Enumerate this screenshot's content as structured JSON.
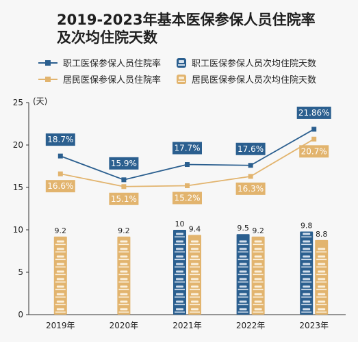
{
  "chart_data": {
    "type": "bar-line",
    "title": "2019-2023年基本医保参保人员住院率",
    "title_line2": "及次均住院天数",
    "y_unit": "(天)",
    "categories": [
      "2019年",
      "2020年",
      "2021年",
      "2022年",
      "2023年"
    ],
    "ylim": [
      0,
      25
    ],
    "yticks": [
      0,
      5,
      10,
      15,
      20,
      25
    ],
    "grid": false,
    "legend_placement": "top",
    "colors": {
      "employee": "#2b5f8f",
      "resident": "#e2b46e",
      "axis": "#333333"
    },
    "series": [
      {
        "name": "职工医保参保人员住院率",
        "type": "line",
        "color_key": "employee",
        "values": [
          18.7,
          15.9,
          17.7,
          17.6,
          21.86
        ],
        "labels": [
          "18.7%",
          "15.9%",
          "17.7%",
          "17.6%",
          "21.86%"
        ]
      },
      {
        "name": "居民医保参保人员住院率",
        "type": "line",
        "color_key": "resident",
        "values": [
          16.6,
          15.1,
          15.2,
          16.3,
          20.7
        ],
        "labels": [
          "16.6%",
          "15.1%",
          "15.2%",
          "16.3%",
          "20.7%"
        ]
      },
      {
        "name": "职工医保参保人员次均住院天数",
        "type": "bar",
        "color_key": "employee",
        "values": [
          null,
          null,
          10,
          9.5,
          9.8
        ],
        "labels": [
          "",
          "",
          "10",
          "9.5",
          "9.8"
        ]
      },
      {
        "name": "居民医保参保人员次均住院天数",
        "type": "bar",
        "color_key": "resident",
        "values": [
          9.2,
          9.2,
          9.4,
          9.2,
          8.8
        ],
        "labels": [
          "9.2",
          "9.2",
          "9.4",
          "9.2",
          "8.8"
        ]
      }
    ]
  }
}
